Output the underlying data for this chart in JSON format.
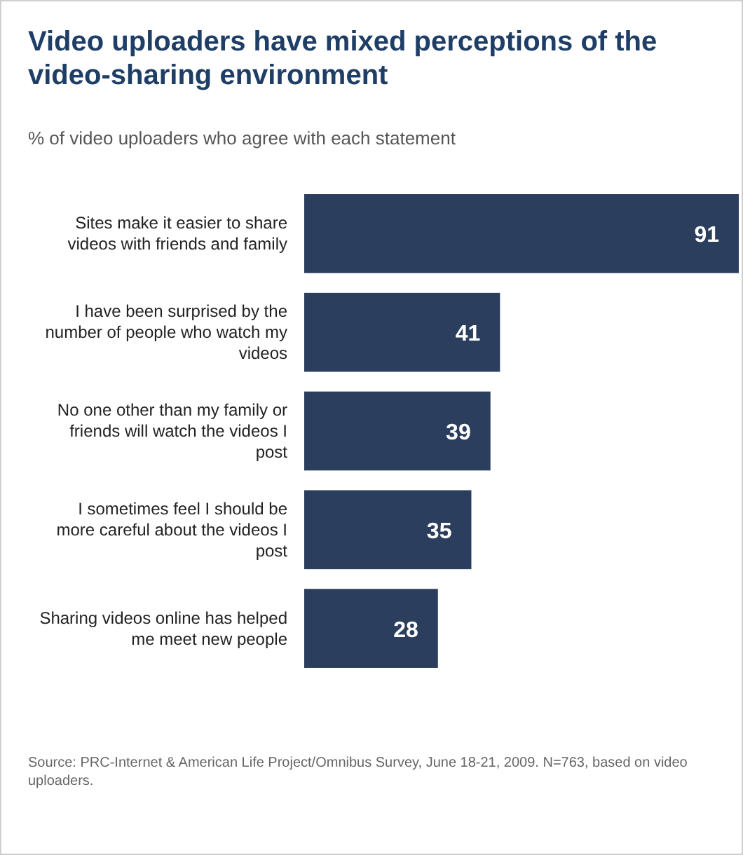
{
  "chart_data": {
    "type": "bar",
    "orientation": "horizontal",
    "title": "Video uploaders have mixed perceptions of the video-sharing environment",
    "subtitle": "% of video uploaders who agree with each statement",
    "categories": [
      "Sites make it easier to share videos with friends and family",
      "I have been surprised by the number of people who watch my videos",
      "No one other than my family or friends will watch the videos I post",
      "I sometimes feel I should be more careful about the videos I post",
      "Sharing videos online has helped me meet new people"
    ],
    "values": [
      91,
      41,
      39,
      35,
      28
    ],
    "color": "#2c3e5e",
    "data_labels": true,
    "annotations": [
      "Source: PRC-Internet & American Life Project/Omnibus Survey, June 18-21, 2009. N=763, based on video uploaders."
    ]
  }
}
